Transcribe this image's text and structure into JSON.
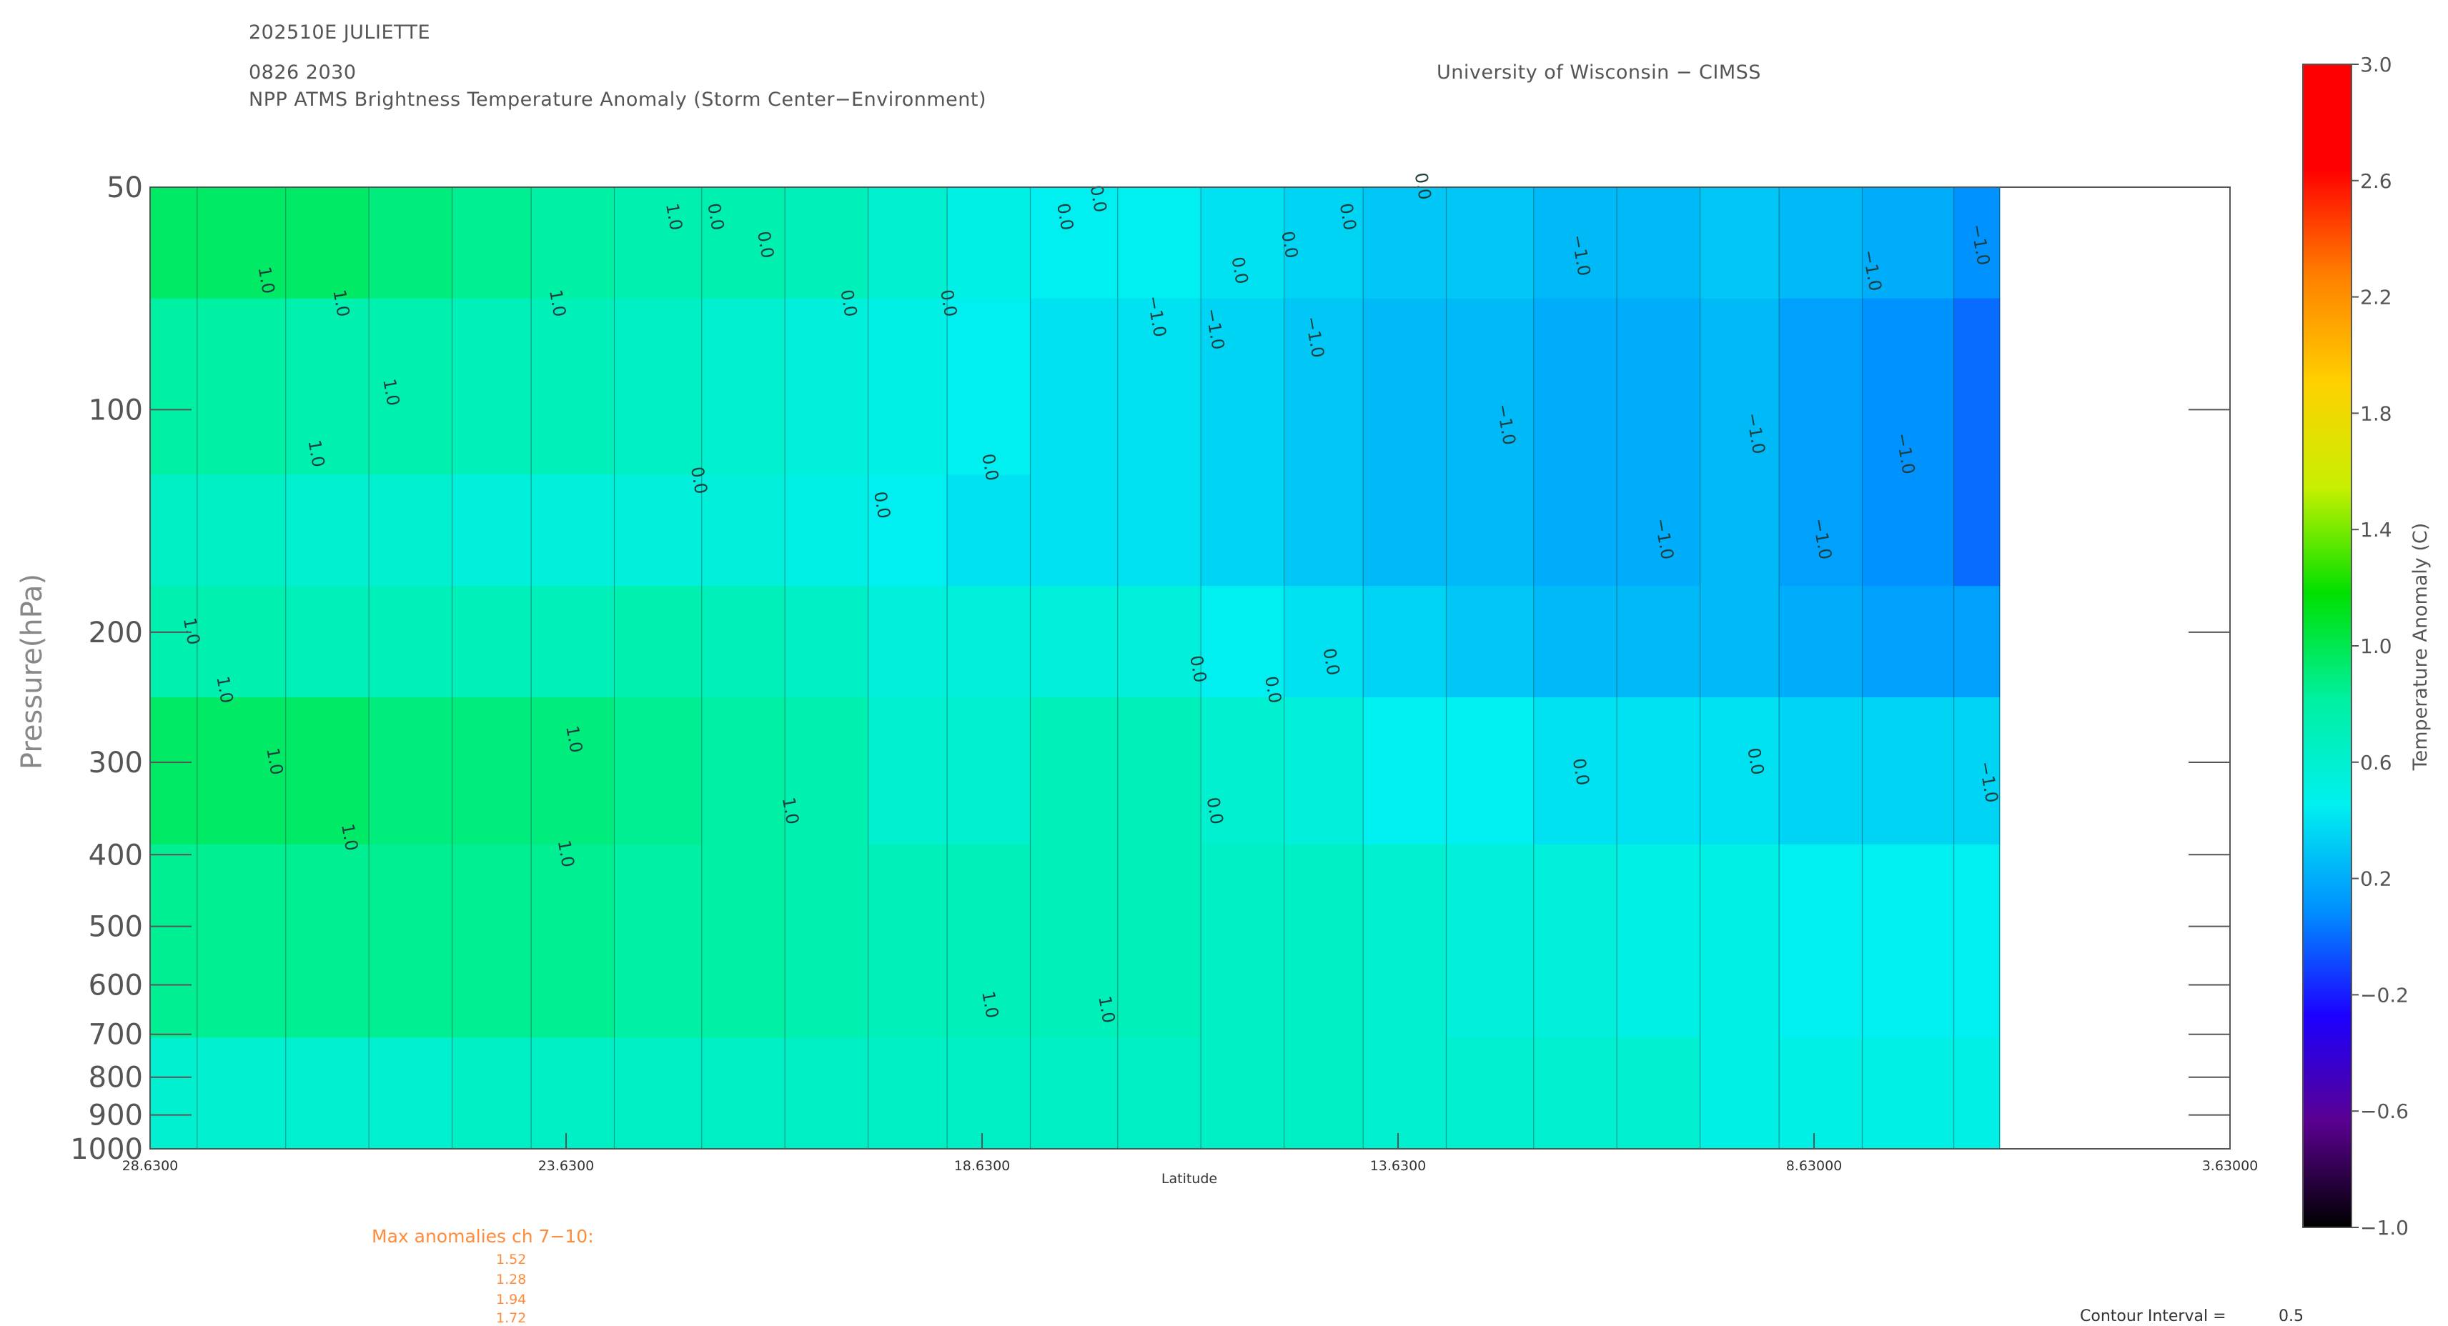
{
  "header": {
    "storm_id": "202510E JULIETTE",
    "datetime": "0826 2030",
    "product": "NPP ATMS Brightness Temperature Anomaly (Storm Center−Environment)",
    "institution": "University of Wisconsin − CIMSS"
  },
  "max_anomalies": {
    "title": "Max anomalies ch 7−10:",
    "values": [
      "1.52",
      "1.28",
      "1.94",
      "1.72"
    ]
  },
  "contour_interval": {
    "label": "Contour Interval =",
    "value": "0.5"
  },
  "colors": {
    "text": "#555555",
    "annotation": "#ff8c3a",
    "colormap": [
      "#000000",
      "#5a0090",
      "#1c00ff",
      "#0090ff",
      "#00f0f0",
      "#00f0a0",
      "#00e000",
      "#c8f000",
      "#ffd000",
      "#ff8000",
      "#ff0000",
      "#ff0000"
    ]
  },
  "chart_data": {
    "type": "heatmap",
    "title": "NPP ATMS Brightness Temperature Anomaly (Storm Center−Environment)",
    "xlabel": "Latitude",
    "ylabel": "Pressure(hPa)",
    "y_scale": "log",
    "y_reversed": true,
    "xlim": [
      28.63,
      3.63
    ],
    "ylim": [
      1000,
      50
    ],
    "x_ticks": [
      "28.6300",
      "23.6300",
      "18.6300",
      "13.6300",
      "8.63000",
      "3.63000"
    ],
    "x_tick_values": [
      28.63,
      23.63,
      18.63,
      13.63,
      8.63,
      3.63
    ],
    "y_ticks": [
      50,
      100,
      200,
      300,
      400,
      500,
      600,
      700,
      800,
      900,
      1000
    ],
    "colorbar": {
      "label": "Temperature Anomaly (C)",
      "range": [
        -1.0,
        3.0
      ],
      "ticks": [
        "3.0",
        "2.6",
        "2.2",
        "1.8",
        "1.4",
        "1.0",
        "0.6",
        "0.2",
        "−0.2",
        "−0.6",
        "−1.0"
      ]
    },
    "data_extent_lat": [
      28.63,
      6.4
    ],
    "contour_interval": 0.5,
    "columns_lat": [
      28.63,
      27.5,
      26.5,
      25.5,
      24.5,
      23.6,
      22.5,
      21.5,
      20.5,
      19.5,
      18.6,
      17.5,
      16.5,
      15.5,
      14.5,
      13.6,
      12.5,
      11.5,
      10.5,
      9.5,
      8.6,
      7.5,
      6.4
    ],
    "levels_hpa": [
      50,
      70,
      100,
      150,
      200,
      300,
      400,
      500,
      700,
      1000
    ],
    "anomaly_grid": [
      [
        0.95,
        0.8,
        0.65,
        0.75,
        0.95,
        0.85,
        0.6
      ],
      [
        0.95,
        0.8,
        0.65,
        0.75,
        0.95,
        0.85,
        0.6
      ],
      [
        0.95,
        0.75,
        0.6,
        0.7,
        0.95,
        0.85,
        0.6
      ],
      [
        0.9,
        0.75,
        0.6,
        0.7,
        0.9,
        0.85,
        0.6
      ],
      [
        0.85,
        0.7,
        0.55,
        0.7,
        0.9,
        0.85,
        0.65
      ],
      [
        0.8,
        0.7,
        0.55,
        0.7,
        0.9,
        0.85,
        0.65
      ],
      [
        0.75,
        0.65,
        0.55,
        0.75,
        0.85,
        0.8,
        0.65
      ],
      [
        0.75,
        0.6,
        0.55,
        0.7,
        0.8,
        0.8,
        0.65
      ],
      [
        0.7,
        0.55,
        0.5,
        0.65,
        0.75,
        0.75,
        0.65
      ],
      [
        0.6,
        0.5,
        0.45,
        0.55,
        0.6,
        0.7,
        0.65
      ],
      [
        0.5,
        0.45,
        0.4,
        0.55,
        0.6,
        0.7,
        0.65
      ],
      [
        0.45,
        0.4,
        0.4,
        0.55,
        0.7,
        0.7,
        0.65
      ],
      [
        0.45,
        0.4,
        0.4,
        0.55,
        0.7,
        0.7,
        0.65
      ],
      [
        0.4,
        0.35,
        0.35,
        0.45,
        0.6,
        0.65,
        0.65
      ],
      [
        0.35,
        0.3,
        0.3,
        0.4,
        0.55,
        0.65,
        0.65
      ],
      [
        0.3,
        0.25,
        0.25,
        0.35,
        0.45,
        0.6,
        0.6
      ],
      [
        0.3,
        0.25,
        0.25,
        0.3,
        0.45,
        0.55,
        0.6
      ],
      [
        0.25,
        0.2,
        0.2,
        0.25,
        0.4,
        0.55,
        0.6
      ],
      [
        0.25,
        0.2,
        0.2,
        0.25,
        0.4,
        0.5,
        0.6
      ],
      [
        0.3,
        0.25,
        0.25,
        0.25,
        0.4,
        0.5,
        0.5
      ],
      [
        0.25,
        0.15,
        0.15,
        0.2,
        0.35,
        0.45,
        0.5
      ],
      [
        0.2,
        0.1,
        0.1,
        0.15,
        0.35,
        0.45,
        0.5
      ],
      [
        0.1,
        0.0,
        0.0,
        0.15,
        0.35,
        0.45,
        0.5
      ]
    ],
    "anomaly_grid_levels_hpa": [
      50,
      100,
      150,
      200,
      300,
      500,
      1000
    ],
    "contour_labels": [
      {
        "text": "1.0",
        "lat": 28.2,
        "p": 200
      },
      {
        "text": "1.0",
        "lat": 27.3,
        "p": 67
      },
      {
        "text": "1.0",
        "lat": 26.4,
        "p": 72
      },
      {
        "text": "1.0",
        "lat": 26.7,
        "p": 115
      },
      {
        "text": "1.0",
        "lat": 25.8,
        "p": 95
      },
      {
        "text": "1.0",
        "lat": 23.8,
        "p": 72
      },
      {
        "text": "1.0",
        "lat": 22.4,
        "p": 55
      },
      {
        "text": "1.0",
        "lat": 27.8,
        "p": 240
      },
      {
        "text": "1.0",
        "lat": 27.2,
        "p": 300
      },
      {
        "text": "1.0",
        "lat": 26.3,
        "p": 380
      },
      {
        "text": "1.0",
        "lat": 23.6,
        "p": 280
      },
      {
        "text": "1.0",
        "lat": 23.7,
        "p": 400
      },
      {
        "text": "1.0",
        "lat": 21.0,
        "p": 350
      },
      {
        "text": "1.0",
        "lat": 18.6,
        "p": 640
      },
      {
        "text": "1.0",
        "lat": 17.2,
        "p": 650
      },
      {
        "text": "0.0",
        "lat": 21.9,
        "p": 55
      },
      {
        "text": "0.0",
        "lat": 21.3,
        "p": 60
      },
      {
        "text": "0.0",
        "lat": 22.1,
        "p": 125
      },
      {
        "text": "0.0",
        "lat": 20.3,
        "p": 72
      },
      {
        "text": "0.0",
        "lat": 19.1,
        "p": 72
      },
      {
        "text": "0.0",
        "lat": 18.6,
        "p": 120
      },
      {
        "text": "0.0",
        "lat": 19.9,
        "p": 135
      },
      {
        "text": "0.0",
        "lat": 17.7,
        "p": 55
      },
      {
        "text": "0.0",
        "lat": 17.3,
        "p": 52
      },
      {
        "text": "0.0",
        "lat": 14.3,
        "p": 55
      },
      {
        "text": "0.0",
        "lat": 16.1,
        "p": 225
      },
      {
        "text": "0.0",
        "lat": 14.5,
        "p": 220
      },
      {
        "text": "0.0",
        "lat": 15.0,
        "p": 60
      },
      {
        "text": "0.0",
        "lat": 15.6,
        "p": 65
      },
      {
        "text": "0.0",
        "lat": 15.2,
        "p": 240
      },
      {
        "text": "0.0",
        "lat": 15.9,
        "p": 350
      },
      {
        "text": "0.0",
        "lat": 13.4,
        "p": 50
      },
      {
        "text": "0.0",
        "lat": 11.5,
        "p": 310
      },
      {
        "text": "0.0",
        "lat": 9.4,
        "p": 300
      },
      {
        "text": "−1.0",
        "lat": 16.6,
        "p": 75
      },
      {
        "text": "−1.0",
        "lat": 15.9,
        "p": 78
      },
      {
        "text": "−1.0",
        "lat": 14.7,
        "p": 80
      },
      {
        "text": "−1.0",
        "lat": 12.4,
        "p": 105
      },
      {
        "text": "−1.0",
        "lat": 11.5,
        "p": 62
      },
      {
        "text": "−1.0",
        "lat": 10.5,
        "p": 150
      },
      {
        "text": "−1.0",
        "lat": 9.4,
        "p": 108
      },
      {
        "text": "−1.0",
        "lat": 8.6,
        "p": 150
      },
      {
        "text": "−1.0",
        "lat": 8.0,
        "p": 65
      },
      {
        "text": "−1.0",
        "lat": 7.6,
        "p": 115
      },
      {
        "text": "−1.0",
        "lat": 6.7,
        "p": 60
      },
      {
        "text": "−1.0",
        "lat": 6.6,
        "p": 320
      }
    ],
    "grid": false,
    "legend": "colorbar-right"
  }
}
